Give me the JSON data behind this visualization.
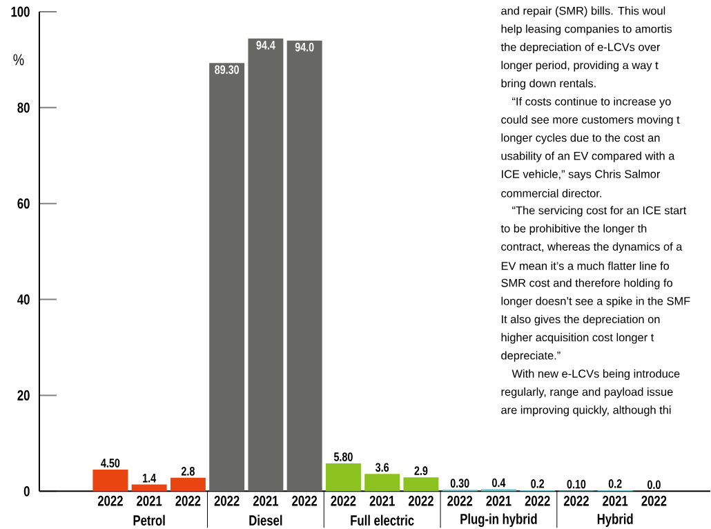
{
  "chart_data": {
    "type": "bar",
    "ylabel": "%",
    "categories": [
      "2022",
      "2021",
      "2022",
      "2022",
      "2021",
      "2022",
      "2022",
      "2021",
      "2022",
      "2022",
      "2021",
      "2022",
      "2022",
      "2021",
      "2022"
    ],
    "values": [
      4.5,
      1.4,
      2.8,
      89.3,
      94.4,
      94.0,
      5.8,
      3.6,
      2.9,
      0.3,
      0.4,
      0.2,
      0.1,
      0.2,
      0.0
    ],
    "value_labels": [
      "4.50",
      "1.4",
      "2.8",
      "89.30",
      "94.4",
      "94.0",
      "5.80",
      "3.6",
      "2.9",
      "0.30",
      "0.4",
      "0.2",
      "0.10",
      "0.2",
      "0.0"
    ],
    "colors": [
      "#e84511",
      "#e84511",
      "#e84511",
      "#676766",
      "#676766",
      "#676766",
      "#8cc21f",
      "#8cc21f",
      "#8cc21f",
      "#5fc4c8",
      "#5fc4c8",
      "#5fc4c8",
      "#5fc4c8",
      "#5fc4c8",
      "#5fc4c8"
    ],
    "ylim": [
      0,
      100
    ],
    "yticks": [
      0,
      20,
      40,
      60,
      80,
      100
    ],
    "grid": false,
    "annotations": [
      "Petrol",
      "Diesel",
      "Full electric",
      "Plug-in hybrid",
      "Hybrid",
      "and repair (SMR) bills. This woul",
      "help leasing companies to amortis",
      "the depreciation of e-LCVs over",
      "longer period, providing a way t",
      "bring down rentals.",
      "“If costs continue to increase yo",
      "could see more customers moving t",
      "longer cycles due to the cost an",
      "usability of an EV compared with a",
      "ICE vehicle,” says Chris Salmor",
      "commercial director.",
      "“The servicing cost for an ICE start",
      "to be prohibitive the longer th",
      "contract, whereas the dynamics of a",
      "EV mean it’s a much flatter line fo",
      "SMR cost and therefore holding fo",
      "longer doesn’t see a spike in the SMF",
      "It also gives the depreciation on",
      "higher acquisition cost longer t",
      "depreciate.”",
      "With new e-LCVs being introduce",
      "regularly, range and payload issue",
      "are improving quickly, although thi"
    ]
  }
}
